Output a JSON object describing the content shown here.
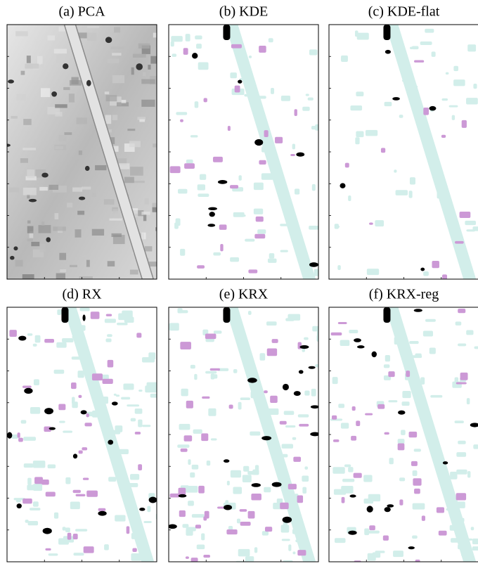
{
  "panels": [
    {
      "title": "(a) PCA"
    },
    {
      "title": "(b) KDE"
    },
    {
      "title": "(c) KDE-flat"
    },
    {
      "title": "(d) RX"
    },
    {
      "title": "(e) KRX"
    },
    {
      "title": "(f) KRX-reg"
    }
  ]
}
